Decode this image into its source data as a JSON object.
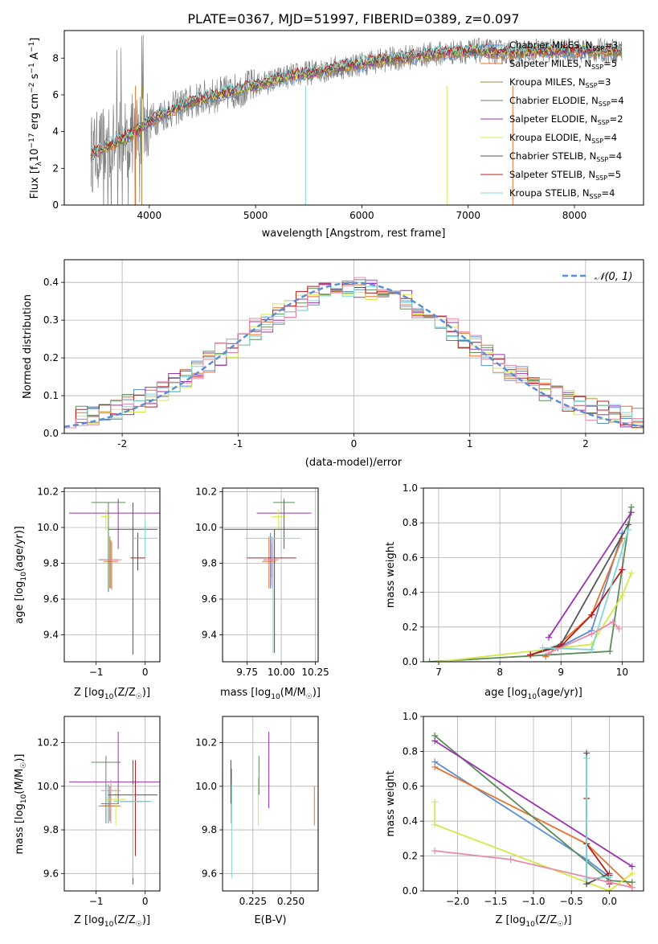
{
  "figure_title": "PLATE=0367, MJD=51997, FIBERID=0389, z=0.097",
  "colors": {
    "Chabrier MILES": "#5a8fd6",
    "Salpeter MILES": "#e8712b",
    "Kroupa MILES": "#9c8a3a",
    "Chabrier ELODIE": "#5b8a5b",
    "Salpeter ELODIE": "#9b30b0",
    "Kroupa ELODIE": "#d4e84a",
    "Chabrier STELIB": "#555555",
    "Salpeter STELIB": "#b81c1c",
    "Kroupa STELIB": "#7fd6d6",
    "pink": "#e88aa8",
    "data_gray": "#808080",
    "normal_curve": "#5a8fd6"
  },
  "chart_data": [
    {
      "id": "spectrum",
      "type": "line",
      "xlabel": "wavelength [Angstrom, rest frame]",
      "ylabel_parts": [
        "Flux [f",
        "λ",
        "10",
        "−17",
        " erg cm",
        "−2",
        " s",
        "−1",
        " A",
        "−1",
        "]"
      ],
      "xlim": [
        3200,
        8650
      ],
      "ylim": [
        0,
        9.5
      ],
      "xticks": [
        4000,
        5000,
        6000,
        7000,
        8000
      ],
      "yticks": [
        0,
        2,
        4,
        6,
        8
      ],
      "grid": false,
      "legend": "top-right",
      "continuum_x": [
        3450,
        3600,
        3800,
        3950,
        4100,
        4300,
        4500,
        4800,
        5000,
        5300,
        5600,
        5900,
        6200,
        6500,
        6800,
        7100,
        7400,
        7700,
        8000,
        8300,
        8450
      ],
      "continuum_y": [
        2.8,
        3.2,
        3.7,
        4.3,
        4.9,
        5.4,
        5.8,
        6.2,
        6.5,
        7.0,
        7.3,
        7.6,
        7.9,
        8.1,
        8.3,
        8.4,
        8.3,
        8.4,
        8.4,
        8.4,
        8.4
      ],
      "series": [
        {
          "name": "Chabrier MILES",
          "label_main": "Chabrier MILES, N",
          "label_sub": "SSP",
          "label_tail": "=3",
          "color_key": "Chabrier MILES"
        },
        {
          "name": "Salpeter MILES",
          "label_main": "Salpeter MILES, N",
          "label_sub": "SSP",
          "label_tail": "=5",
          "color_key": "Salpeter MILES"
        },
        {
          "name": "Kroupa MILES",
          "label_main": "Kroupa MILES, N",
          "label_sub": "SSP",
          "label_tail": "=3",
          "color_key": "Kroupa MILES"
        },
        {
          "name": "Chabrier ELODIE",
          "label_main": "Chabrier ELODIE, N",
          "label_sub": "SSP",
          "label_tail": "=4",
          "color_key": "Chabrier ELODIE"
        },
        {
          "name": "Salpeter ELODIE",
          "label_main": "Salpeter ELODIE, N",
          "label_sub": "SSP",
          "label_tail": "=2",
          "color_key": "Salpeter ELODIE"
        },
        {
          "name": "Kroupa ELODIE",
          "label_main": "Kroupa ELODIE, N",
          "label_sub": "SSP",
          "label_tail": "=4",
          "color_key": "Kroupa ELODIE"
        },
        {
          "name": "Chabrier STELIB",
          "label_main": "Chabrier STELIB, N",
          "label_sub": "SSP",
          "label_tail": "=4",
          "color_key": "Chabrier STELIB"
        },
        {
          "name": "Salpeter STELIB",
          "label_main": "Salpeter STELIB, N",
          "label_sub": "SSP",
          "label_tail": "=5",
          "color_key": "Salpeter STELIB"
        },
        {
          "name": "Kroupa STELIB",
          "label_main": "Kroupa STELIB, N",
          "label_sub": "SSP",
          "label_tail": "=4",
          "color_key": "Kroupa STELIB"
        }
      ]
    },
    {
      "id": "residuals",
      "type": "bar",
      "xlabel": "(data-model)/error",
      "ylabel": "Normed distribution",
      "xlim": [
        -2.5,
        2.5
      ],
      "ylim": [
        0,
        0.46
      ],
      "xticks": [
        -2,
        -1,
        0,
        1,
        2
      ],
      "yticks": [
        0.0,
        0.1,
        0.2,
        0.3,
        0.4
      ],
      "grid": true,
      "legend": "top-right",
      "curve_label": "𝒩(0, 1)",
      "bin_width": 0.1,
      "bin_start": -2.5,
      "histogram_colors": [
        "Chabrier MILES",
        "Salpeter MILES",
        "Chabrier ELODIE",
        "Salpeter ELODIE",
        "Kroupa ELODIE",
        "Salpeter STELIB",
        "Kroupa STELIB",
        "pink"
      ]
    },
    {
      "id": "age_vs_Z",
      "type": "scatter",
      "xlabel_parts": [
        "Z [log",
        "10",
        "(Z/Z",
        "☉",
        ")]"
      ],
      "ylabel_parts": [
        "age  [log",
        "10",
        "(age/yr)]"
      ],
      "xlim": [
        -1.65,
        0.3
      ],
      "ylim": [
        9.25,
        10.22
      ],
      "xticks": [
        -1,
        0
      ],
      "xtick_labels": [
        "−1",
        "0"
      ],
      "yticks": [
        9.4,
        9.6,
        9.8,
        10.0,
        10.2
      ],
      "grid": true,
      "points": [
        {
          "x": -0.75,
          "y": 9.82,
          "xerr": 0.2,
          "yerr_lo": 0.18,
          "yerr_hi": 0.15,
          "c": "Chabrier MILES"
        },
        {
          "x": -0.7,
          "y": 9.81,
          "xerr": 0.15,
          "yerr_lo": 0.15,
          "yerr_hi": 0.12,
          "c": "Salpeter MILES"
        },
        {
          "x": -0.72,
          "y": 9.82,
          "xerr": 0.18,
          "yerr_lo": 0.16,
          "yerr_hi": 0.13,
          "c": "Kroupa MILES"
        },
        {
          "x": -0.75,
          "y": 10.14,
          "xerr": 0.35,
          "yerr_lo": 0.5,
          "yerr_hi": 0.0,
          "c": "Chabrier ELODIE"
        },
        {
          "x": -0.55,
          "y": 10.08,
          "xerr": 1.0,
          "yerr_lo": 0.2,
          "yerr_hi": 0.08,
          "c": "Salpeter ELODIE"
        },
        {
          "x": -0.8,
          "y": 10.06,
          "xerr": 0.1,
          "yerr_lo": 0.08,
          "yerr_hi": 0.04,
          "c": "Kroupa ELODIE"
        },
        {
          "x": -0.25,
          "y": 9.99,
          "xerr": 0.5,
          "yerr_lo": 0.7,
          "yerr_hi": 0.15,
          "c": "Chabrier STELIB"
        },
        {
          "x": -0.15,
          "y": 9.83,
          "xerr": 0.15,
          "yerr_lo": 0.07,
          "yerr_hi": 0.14,
          "c": "Salpeter STELIB"
        },
        {
          "x": 0.0,
          "y": 9.94,
          "xerr": 0.25,
          "yerr_lo": 0.1,
          "yerr_hi": 0.1,
          "c": "Kroupa STELIB"
        },
        {
          "x": -0.68,
          "y": 9.82,
          "xerr": 0.2,
          "yerr_lo": 0.17,
          "yerr_hi": 0.1,
          "c": "pink"
        }
      ]
    },
    {
      "id": "age_vs_mass",
      "type": "scatter",
      "xlabel_parts": [
        "mass [log",
        "10",
        "(M/M",
        "☉",
        ")]"
      ],
      "xlim": [
        9.57,
        10.27
      ],
      "ylim": [
        9.25,
        10.22
      ],
      "xticks": [
        9.75,
        10.0,
        10.25
      ],
      "xtick_labels": [
        "9.75",
        "10.00",
        "10.25"
      ],
      "yticks": [
        9.4,
        9.6,
        9.8,
        10.0,
        10.2
      ],
      "grid": true,
      "points": [
        {
          "x": 9.92,
          "y": 9.82,
          "xerr": 0.05,
          "yerr_lo": 0.16,
          "yerr_hi": 0.15,
          "c": "Chabrier MILES"
        },
        {
          "x": 9.91,
          "y": 9.81,
          "xerr": 0.05,
          "yerr_lo": 0.15,
          "yerr_hi": 0.14,
          "c": "Salpeter MILES"
        },
        {
          "x": 9.93,
          "y": 9.82,
          "xerr": 0.05,
          "yerr_lo": 0.14,
          "yerr_hi": 0.13,
          "c": "Kroupa MILES"
        },
        {
          "x": 10.02,
          "y": 10.14,
          "xerr": 0.08,
          "yerr_lo": 0.21,
          "yerr_hi": 0.0,
          "c": "Chabrier ELODIE"
        },
        {
          "x": 10.02,
          "y": 10.08,
          "xerr": 0.2,
          "yerr_lo": 0.2,
          "yerr_hi": 0.08,
          "c": "Salpeter ELODIE"
        },
        {
          "x": 9.98,
          "y": 10.06,
          "xerr": 0.05,
          "yerr_lo": 0.08,
          "yerr_hi": 0.04,
          "c": "Kroupa ELODIE"
        },
        {
          "x": 9.95,
          "y": 9.99,
          "xerr": 0.37,
          "yerr_lo": 0.69,
          "yerr_hi": 0.0,
          "c": "Chabrier STELIB"
        },
        {
          "x": 9.93,
          "y": 9.83,
          "xerr": 0.18,
          "yerr_lo": 0.11,
          "yerr_hi": 0.08,
          "c": "Salpeter STELIB"
        },
        {
          "x": 9.94,
          "y": 9.94,
          "xerr": 0.2,
          "yerr_lo": 0.64,
          "yerr_hi": 0.0,
          "c": "Kroupa STELIB"
        },
        {
          "x": 9.93,
          "y": 9.82,
          "xerr": 0.05,
          "yerr_lo": 0.16,
          "yerr_hi": 0.12,
          "c": "pink"
        }
      ]
    },
    {
      "id": "mass_weight_vs_age",
      "type": "line",
      "xlabel_parts": [
        "age  [log",
        "10",
        "(age/yr)]"
      ],
      "ylabel": "mass weight",
      "xlim": [
        6.75,
        10.35
      ],
      "ylim": [
        0,
        1.0
      ],
      "xticks": [
        7,
        8,
        9,
        10
      ],
      "yticks": [
        0.0,
        0.2,
        0.4,
        0.6,
        0.8,
        1.0
      ],
      "grid": true,
      "series": [
        {
          "c": "Chabrier MILES",
          "x": [
            8.95,
            9.5,
            10.0
          ],
          "y": [
            0.08,
            0.18,
            0.74
          ]
        },
        {
          "c": "Salpeter MILES",
          "x": [
            8.75,
            9.5,
            10.0
          ],
          "y": [
            0.03,
            0.27,
            0.71
          ]
        },
        {
          "c": "Chabrier ELODIE",
          "x": [
            6.85,
            9.8,
            10.15
          ],
          "y": [
            0.0,
            0.06,
            0.89
          ]
        },
        {
          "c": "Salpeter ELODIE",
          "x": [
            8.8,
            10.15
          ],
          "y": [
            0.14,
            0.86
          ]
        },
        {
          "c": "Kroupa ELODIE",
          "x": [
            7.0,
            9.5,
            10.0,
            10.15
          ],
          "y": [
            0.0,
            0.1,
            0.38,
            0.51
          ]
        },
        {
          "c": "Chabrier STELIB",
          "x": [
            8.5,
            9.0,
            10.1
          ],
          "y": [
            0.04,
            0.1,
            0.79
          ]
        },
        {
          "c": "Salpeter STELIB",
          "x": [
            8.5,
            9.0,
            9.5,
            10.0
          ],
          "y": [
            0.04,
            0.09,
            0.27,
            0.53
          ]
        },
        {
          "c": "Kroupa STELIB",
          "x": [
            8.7,
            9.5,
            10.1
          ],
          "y": [
            0.08,
            0.07,
            0.76
          ]
        },
        {
          "c": "pink",
          "x": [
            8.8,
            9.5,
            9.85,
            9.95
          ],
          "y": [
            0.05,
            0.16,
            0.23,
            0.19
          ]
        }
      ]
    },
    {
      "id": "mass_vs_Z",
      "type": "scatter",
      "xlabel_parts": [
        "Z [log",
        "10",
        "(Z/Z",
        "☉",
        ")]"
      ],
      "ylabel_parts": [
        "mass [log",
        "10",
        "(M/M",
        "☉",
        ")]"
      ],
      "xlim": [
        -1.65,
        0.3
      ],
      "ylim": [
        9.52,
        10.32
      ],
      "xticks": [
        -1,
        0
      ],
      "xtick_labels": [
        "−1",
        "0"
      ],
      "yticks": [
        9.6,
        9.8,
        10.0,
        10.2
      ],
      "grid": true,
      "points": [
        {
          "x": -0.75,
          "y": 9.91,
          "xerr": 0.2,
          "yerr_lo": 0.08,
          "yerr_hi": 0.1,
          "c": "Chabrier MILES"
        },
        {
          "x": -0.7,
          "y": 9.91,
          "xerr": 0.2,
          "yerr_lo": 0.08,
          "yerr_hi": 0.1,
          "c": "Salpeter MILES"
        },
        {
          "x": -0.72,
          "y": 9.92,
          "xerr": 0.18,
          "yerr_lo": 0.08,
          "yerr_hi": 0.08,
          "c": "Kroupa MILES"
        },
        {
          "x": -0.8,
          "y": 10.11,
          "xerr": 0.3,
          "yerr_lo": 0.28,
          "yerr_hi": 0.03,
          "c": "Chabrier ELODIE"
        },
        {
          "x": -0.55,
          "y": 10.02,
          "xerr": 1.0,
          "yerr_lo": 0.1,
          "yerr_hi": 0.23,
          "c": "Salpeter ELODIE"
        },
        {
          "x": -0.6,
          "y": 9.94,
          "xerr": 0.2,
          "yerr_lo": 0.12,
          "yerr_hi": 0.05,
          "c": "Kroupa ELODIE"
        },
        {
          "x": -0.25,
          "y": 9.96,
          "xerr": 0.5,
          "yerr_lo": 0.41,
          "yerr_hi": 0.16,
          "c": "Chabrier STELIB"
        },
        {
          "x": -0.2,
          "y": 9.93,
          "xerr": 0.3,
          "yerr_lo": 0.25,
          "yerr_hi": 0.19,
          "c": "Salpeter STELIB"
        },
        {
          "x": -0.25,
          "y": 9.93,
          "xerr": 0.4,
          "yerr_lo": 0.35,
          "yerr_hi": 0.08,
          "c": "Kroupa STELIB"
        },
        {
          "x": -0.7,
          "y": 9.98,
          "xerr": 0.2,
          "yerr_lo": 0.15,
          "yerr_hi": 0.05,
          "c": "pink"
        }
      ]
    },
    {
      "id": "mass_vs_EBV",
      "type": "scatter",
      "xlabel": "E(B-V)",
      "xlim": [
        0.205,
        0.268
      ],
      "ylim": [
        9.52,
        10.32
      ],
      "xticks": [
        0.225,
        0.25
      ],
      "xtick_labels": [
        "0.225",
        "0.250"
      ],
      "yticks": [
        9.6,
        9.8,
        10.0,
        10.2
      ],
      "grid": true,
      "points": [
        {
          "x": 0.2105,
          "y": 10.02,
          "yerr_lo": 0.1,
          "yerr_hi": 0.1,
          "c": "Salpeter STELIB"
        },
        {
          "x": 0.2108,
          "y": 10.03,
          "yerr_lo": 0.2,
          "yerr_hi": 0.05,
          "c": "Chabrier STELIB"
        },
        {
          "x": 0.211,
          "y": 9.93,
          "yerr_lo": 0.35,
          "yerr_hi": 0.08,
          "c": "Kroupa STELIB"
        },
        {
          "x": 0.2285,
          "y": 10.04,
          "yerr_lo": 0.22,
          "yerr_hi": 0.0,
          "c": "Kroupa ELODIE"
        },
        {
          "x": 0.229,
          "y": 10.04,
          "yerr_lo": 0.08,
          "yerr_hi": 0.1,
          "c": "Chabrier ELODIE"
        },
        {
          "x": 0.2355,
          "y": 10.07,
          "yerr_lo": 0.17,
          "yerr_hi": 0.18,
          "c": "Salpeter ELODIE"
        },
        {
          "x": 0.2655,
          "y": 9.95,
          "yerr_lo": 0.13,
          "yerr_hi": 0.05,
          "c": "Salpeter MILES"
        }
      ]
    },
    {
      "id": "mass_weight_vs_Z",
      "type": "line",
      "xlabel_parts": [
        "Z [log",
        "10",
        "(Z/Z",
        "☉",
        ")]"
      ],
      "ylabel": "mass weight",
      "xlim": [
        -2.45,
        0.45
      ],
      "ylim": [
        0,
        1.0
      ],
      "xticks": [
        -2.0,
        -1.5,
        -1.0,
        -0.5,
        0.0
      ],
      "xtick_labels": [
        "−2.0",
        "−1.5",
        "−1.0",
        "−0.5",
        "0.0"
      ],
      "yticks": [
        0.0,
        0.2,
        0.4,
        0.6,
        0.8,
        1.0
      ],
      "grid": true,
      "series": [
        {
          "c": "Chabrier MILES",
          "x": [
            -2.3,
            -0.3,
            0.0
          ],
          "y": [
            0.74,
            0.18,
            0.08
          ]
        },
        {
          "c": "Salpeter MILES",
          "x": [
            -2.3,
            -0.3,
            0.3
          ],
          "y": [
            0.71,
            0.27,
            0.02
          ]
        },
        {
          "c": "Chabrier ELODIE",
          "x": [
            -2.3,
            0.0,
            0.3
          ],
          "y": [
            0.89,
            0.06,
            0.05
          ]
        },
        {
          "c": "Salpeter ELODIE",
          "x": [
            -2.3,
            0.3
          ],
          "y": [
            0.86,
            0.14
          ]
        },
        {
          "c": "Kroupa ELODIE",
          "x": [
            -2.3,
            -2.3,
            0.0,
            0.3
          ],
          "y": [
            0.51,
            0.38,
            0.0,
            0.1
          ]
        },
        {
          "c": "Chabrier STELIB",
          "x": [
            -0.3,
            -0.3,
            0.0
          ],
          "y": [
            0.79,
            0.04,
            0.1
          ]
        },
        {
          "c": "Salpeter STELIB",
          "x": [
            -0.3,
            -0.3,
            0.0,
            0.0
          ],
          "y": [
            0.53,
            0.27,
            0.09,
            0.04
          ]
        },
        {
          "c": "Kroupa STELIB",
          "x": [
            -0.3,
            -0.3,
            0.0
          ],
          "y": [
            0.76,
            0.07,
            0.08
          ]
        },
        {
          "c": "pink",
          "x": [
            -2.3,
            -1.3,
            0.0,
            0.3
          ],
          "y": [
            0.23,
            0.18,
            0.05,
            0.02
          ]
        }
      ]
    }
  ]
}
